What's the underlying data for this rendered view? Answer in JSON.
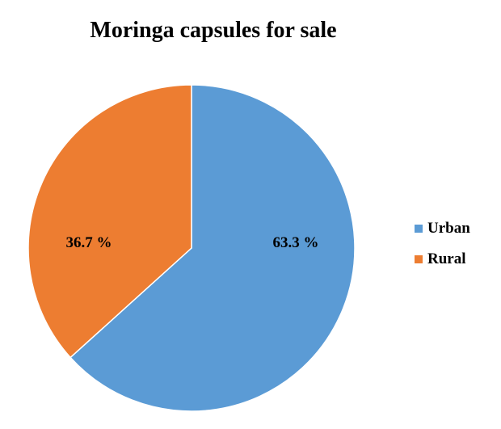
{
  "chart_data": {
    "type": "pie",
    "title": "Moringa capsules for sale",
    "categories": [
      "Urban",
      "Rural"
    ],
    "values": [
      63.3,
      36.7
    ],
    "labels": [
      "63.3 %",
      "36.7 %"
    ],
    "colors": [
      "#5b9bd5",
      "#ed7d31"
    ],
    "legend_position": "right",
    "start_angle": "top",
    "direction": "clockwise"
  }
}
